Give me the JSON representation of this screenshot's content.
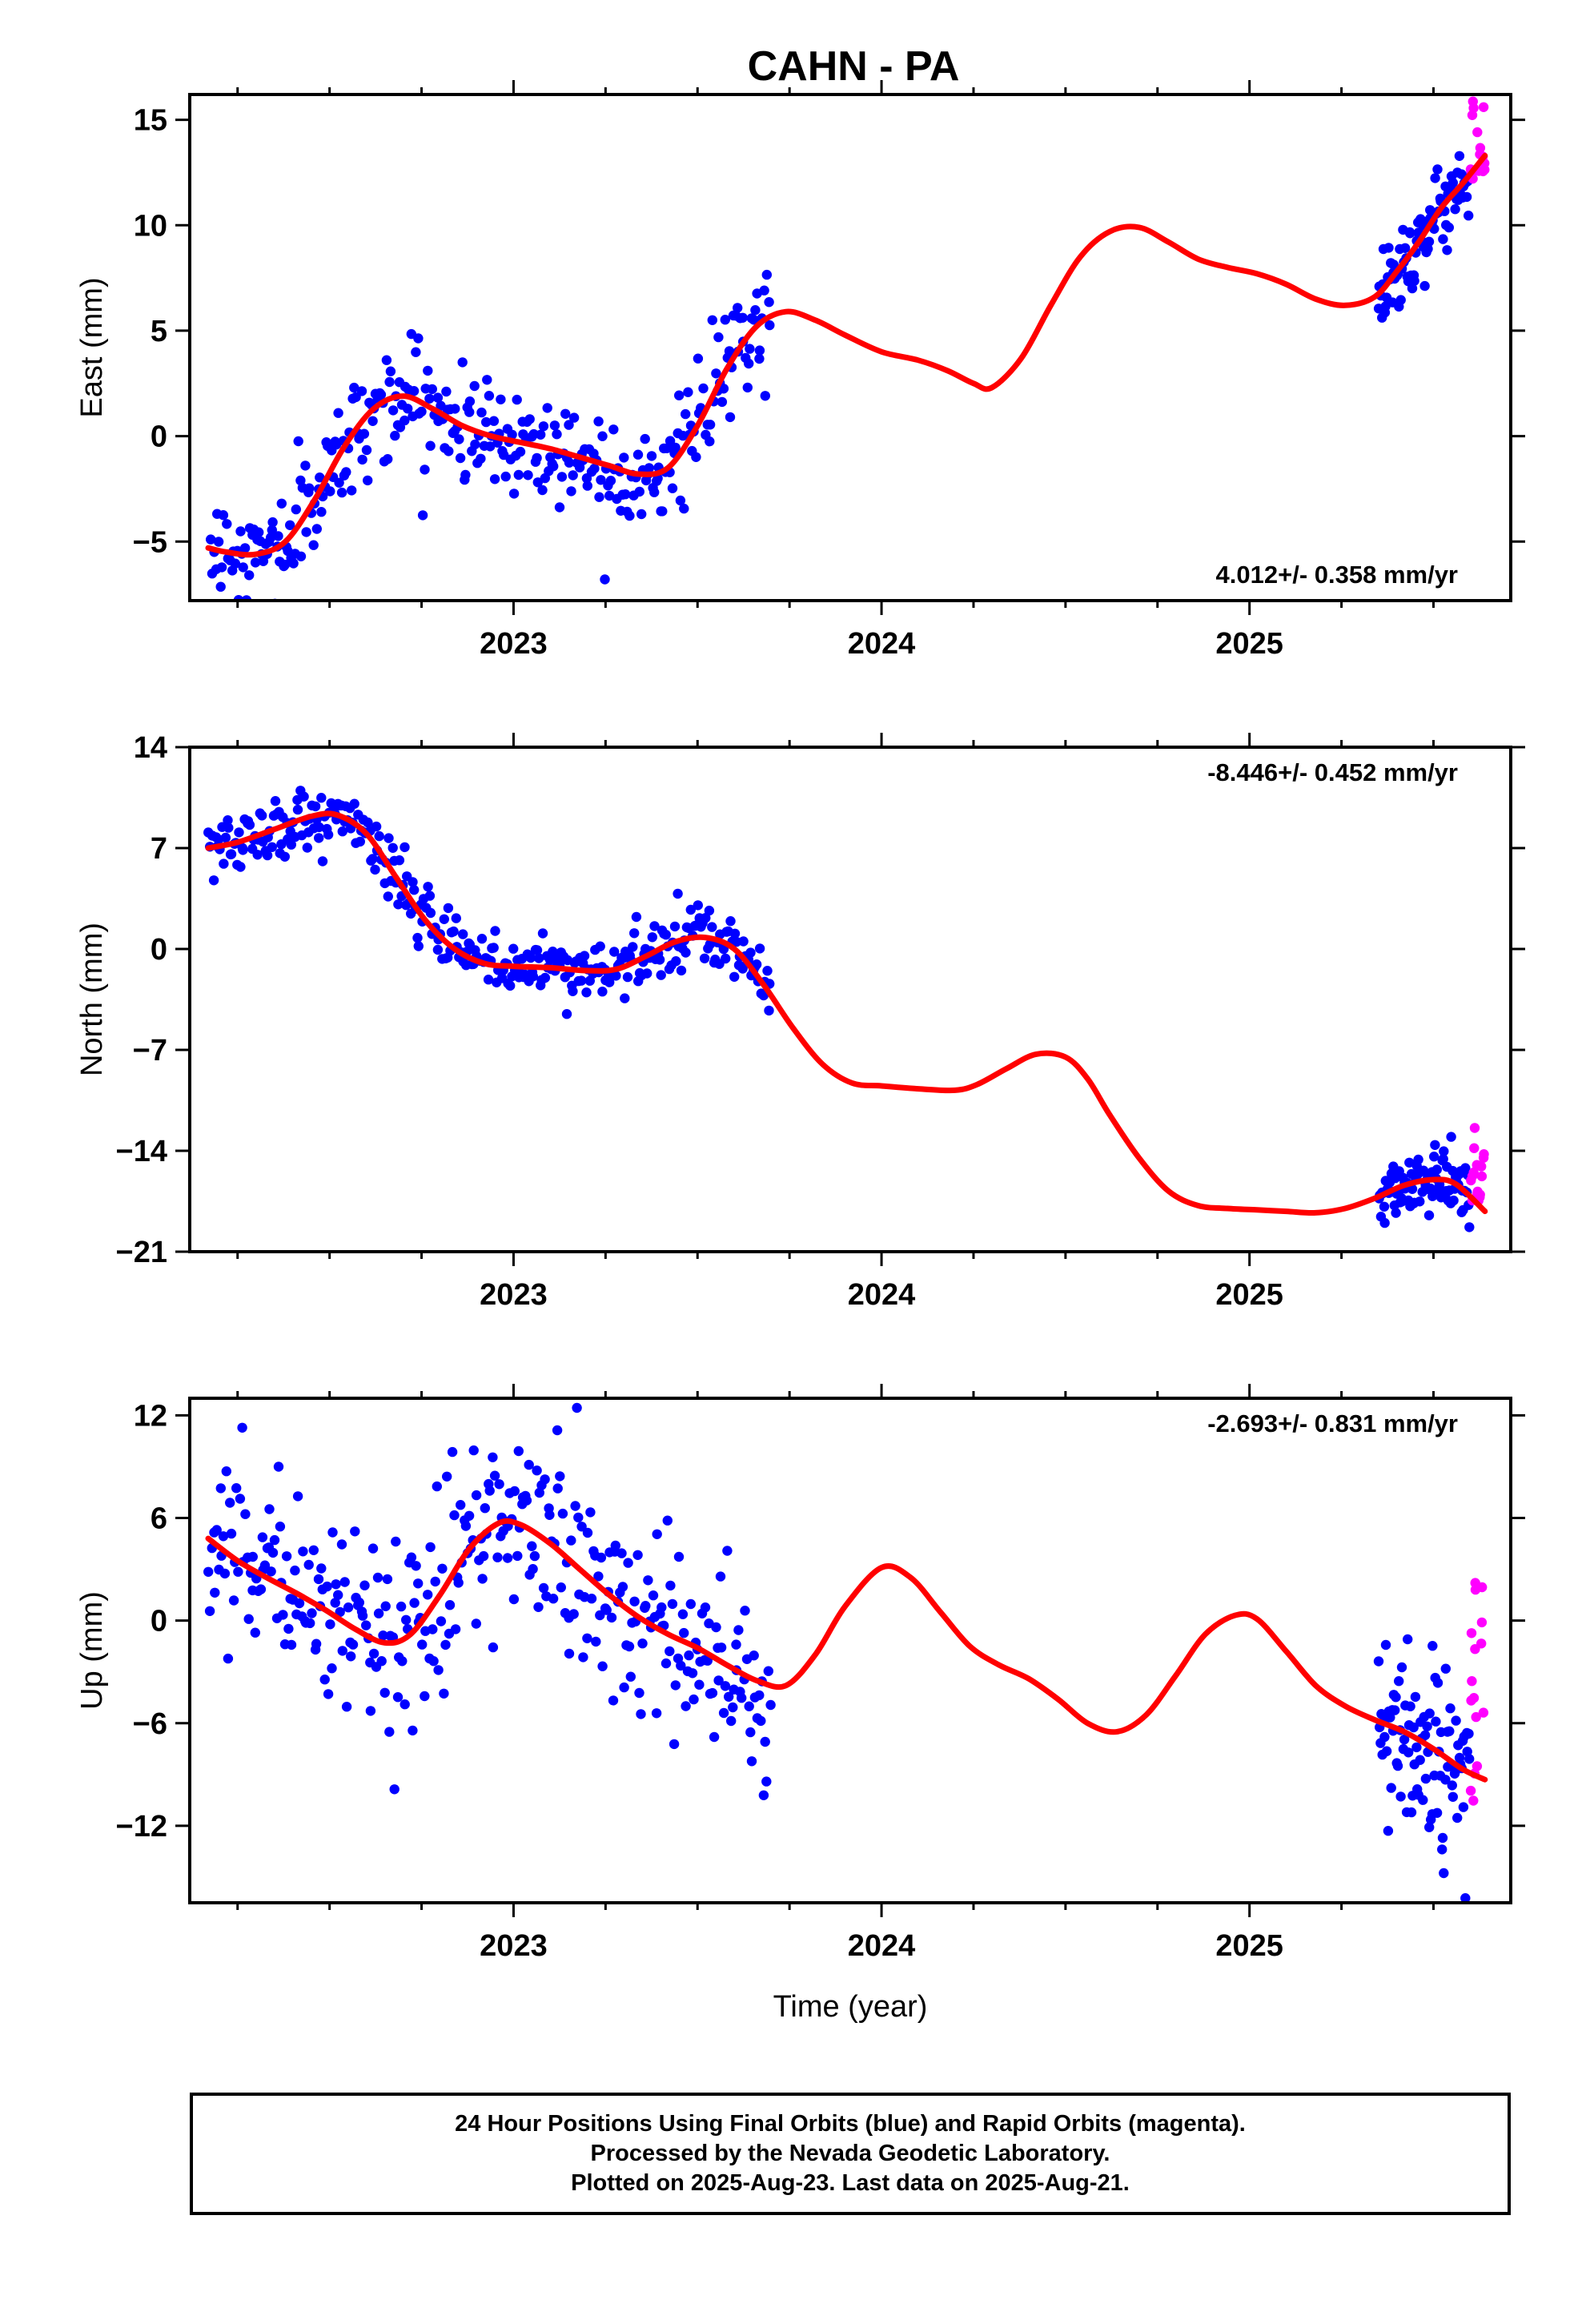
{
  "chart_data": [
    {
      "type": "scatter",
      "title": "CAHN - PA",
      "ylabel": "East (mm)",
      "xlabel": "",
      "xlim": [
        2022.12,
        2025.71
      ],
      "ylim": [
        -7.8,
        16.2
      ],
      "yticks": [
        15,
        10,
        5,
        0,
        -5
      ],
      "xticks": [
        2023,
        2024,
        2025
      ],
      "xticks_minor": [
        2022.25,
        2022.5,
        2022.75,
        2023.25,
        2023.5,
        2023.75,
        2024.25,
        2024.5,
        2024.75,
        2025.25,
        2025.5
      ],
      "rate_label": "4.012+/- 0.358 mm/yr",
      "rate_position": "bottom-right",
      "colors": {
        "final": "#0000ff",
        "rapid": "#ff00ff",
        "model": "#ff0000"
      },
      "model_curve": {
        "x": [
          2022.17,
          2022.22,
          2022.3,
          2022.38,
          2022.46,
          2022.54,
          2022.62,
          2022.7,
          2022.78,
          2022.86,
          2022.94,
          2023.02,
          2023.1,
          2023.18,
          2023.26,
          2023.34,
          2023.42,
          2023.5,
          2023.58,
          2023.66,
          2023.74,
          2023.82,
          2023.9,
          2024.0,
          2024.1,
          2024.18,
          2024.25,
          2024.3,
          2024.38,
          2024.46,
          2024.54,
          2024.62,
          2024.7,
          2024.78,
          2024.86,
          2024.94,
          2025.02,
          2025.1,
          2025.18,
          2025.26,
          2025.34,
          2025.4,
          2025.46,
          2025.52,
          2025.58,
          2025.64
        ],
        "y": [
          -5.3,
          -5.5,
          -5.6,
          -5.0,
          -3.0,
          -0.5,
          1.3,
          1.9,
          1.3,
          0.5,
          0.0,
          -0.3,
          -0.6,
          -1.0,
          -1.4,
          -1.8,
          -1.5,
          0.5,
          3.2,
          5.2,
          5.9,
          5.5,
          4.8,
          4.0,
          3.6,
          3.1,
          2.5,
          2.3,
          3.7,
          6.2,
          8.5,
          9.7,
          9.9,
          9.2,
          8.4,
          8.0,
          7.7,
          7.2,
          6.5,
          6.2,
          6.6,
          7.8,
          9.2,
          10.8,
          12.0,
          13.3
        ]
      },
      "final_segments": [
        {
          "x0": 2022.17,
          "x1": 2023.7,
          "scatter_mm": 1.3,
          "n": 340
        },
        {
          "x0": 2025.35,
          "x1": 2025.6,
          "scatter_mm": 1.0,
          "n": 90
        }
      ],
      "rapid_segments": [
        {
          "x0": 2025.6,
          "x1": 2025.64,
          "y_range": [
            11.5,
            16.0
          ],
          "n": 16
        }
      ]
    },
    {
      "type": "scatter",
      "ylabel": "North (mm)",
      "xlabel": "",
      "xlim": [
        2022.12,
        2025.71
      ],
      "ylim": [
        -21,
        14
      ],
      "yticks": [
        14,
        7,
        0,
        -7,
        -14,
        -21
      ],
      "ytick_labels": [
        "14",
        "7",
        "0",
        "−7",
        "−14",
        "−21"
      ],
      "xticks": [
        2023,
        2024,
        2025
      ],
      "xticks_minor": [
        2022.25,
        2022.5,
        2022.75,
        2023.25,
        2023.5,
        2023.75,
        2024.25,
        2024.5,
        2024.75,
        2025.25,
        2025.5
      ],
      "rate_label": "-8.446+/- 0.452 mm/yr",
      "rate_position": "top-right",
      "colors": {
        "final": "#0000ff",
        "rapid": "#ff00ff",
        "model": "#ff0000"
      },
      "model_curve": {
        "x": [
          2022.17,
          2022.25,
          2022.35,
          2022.45,
          2022.52,
          2022.6,
          2022.68,
          2022.76,
          2022.84,
          2022.92,
          2023.0,
          2023.1,
          2023.2,
          2023.28,
          2023.36,
          2023.44,
          2023.52,
          2023.6,
          2023.68,
          2023.76,
          2023.84,
          2023.92,
          2024.0,
          2024.1,
          2024.2,
          2024.26,
          2024.34,
          2024.42,
          2024.5,
          2024.56,
          2024.62,
          2024.7,
          2024.78,
          2024.86,
          2024.94,
          2025.02,
          2025.1,
          2025.18,
          2025.26,
          2025.34,
          2025.42,
          2025.5,
          2025.56,
          2025.64
        ],
        "y": [
          7.0,
          7.4,
          8.3,
          9.2,
          9.3,
          8.0,
          5.0,
          2.0,
          0.0,
          -1.0,
          -1.2,
          -1.3,
          -1.5,
          -1.4,
          -0.5,
          0.5,
          0.8,
          0.0,
          -2.5,
          -5.5,
          -8.0,
          -9.3,
          -9.5,
          -9.7,
          -9.8,
          -9.4,
          -8.3,
          -7.3,
          -7.5,
          -9.0,
          -11.5,
          -14.5,
          -16.8,
          -17.8,
          -18.0,
          -18.1,
          -18.2,
          -18.3,
          -18.0,
          -17.3,
          -16.4,
          -16.0,
          -16.3,
          -18.2
        ]
      },
      "final_segments": [
        {
          "x0": 2022.17,
          "x1": 2023.7,
          "scatter_mm": 1.1,
          "n": 340
        },
        {
          "x0": 2025.35,
          "x1": 2025.6,
          "scatter_mm": 1.1,
          "n": 90
        }
      ],
      "rapid_segments": [
        {
          "x0": 2025.6,
          "x1": 2025.64,
          "y_range": [
            -18.7,
            -12.2
          ],
          "n": 16
        }
      ]
    },
    {
      "type": "scatter",
      "ylabel": "Up (mm)",
      "xlabel": "Time (year)",
      "xlim": [
        2022.12,
        2025.71
      ],
      "ylim": [
        -16.5,
        13
      ],
      "yticks": [
        12,
        6,
        0,
        -6,
        -12
      ],
      "ytick_labels": [
        "12",
        "6",
        "0",
        "−6",
        "−12"
      ],
      "xticks": [
        2023,
        2024,
        2025
      ],
      "xticks_minor": [
        2022.25,
        2022.5,
        2022.75,
        2023.25,
        2023.5,
        2023.75,
        2024.25,
        2024.5,
        2024.75,
        2025.25,
        2025.5
      ],
      "rate_label": "-2.693+/- 0.831 mm/yr",
      "rate_position": "top-right",
      "colors": {
        "final": "#0000ff",
        "rapid": "#ff00ff",
        "model": "#ff0000"
      },
      "model_curve": {
        "x": [
          2022.17,
          2022.25,
          2022.33,
          2022.41,
          2022.49,
          2022.57,
          2022.65,
          2022.72,
          2022.8,
          2022.88,
          2022.96,
          2023.02,
          2023.1,
          2023.18,
          2023.26,
          2023.34,
          2023.42,
          2023.5,
          2023.58,
          2023.66,
          2023.74,
          2023.82,
          2023.9,
          2024.0,
          2024.08,
          2024.16,
          2024.24,
          2024.32,
          2024.4,
          2024.48,
          2024.56,
          2024.64,
          2024.72,
          2024.8,
          2024.88,
          2024.96,
          2025.02,
          2025.1,
          2025.18,
          2025.26,
          2025.34,
          2025.42,
          2025.5,
          2025.58,
          2025.64
        ],
        "y": [
          4.8,
          3.5,
          2.5,
          1.6,
          0.6,
          -0.5,
          -1.3,
          -0.8,
          1.5,
          4.2,
          5.7,
          5.6,
          4.5,
          3.0,
          1.5,
          0.2,
          -0.8,
          -1.6,
          -2.6,
          -3.5,
          -3.8,
          -2.0,
          0.8,
          3.1,
          2.5,
          0.5,
          -1.5,
          -2.6,
          -3.4,
          -4.6,
          -6.0,
          -6.5,
          -5.5,
          -3.2,
          -0.8,
          0.3,
          0.1,
          -1.8,
          -3.8,
          -5.0,
          -5.8,
          -6.5,
          -7.5,
          -8.7,
          -9.3
        ]
      },
      "final_segments": [
        {
          "x0": 2022.17,
          "x1": 2023.7,
          "scatter_mm": 3.0,
          "n": 340
        },
        {
          "x0": 2025.35,
          "x1": 2025.6,
          "scatter_mm": 2.7,
          "n": 90
        }
      ],
      "rapid_segments": [
        {
          "x0": 2025.6,
          "x1": 2025.64,
          "y_range": [
            -12.0,
            2.7
          ],
          "n": 16
        }
      ]
    }
  ],
  "footer": {
    "line1": "24 Hour Positions Using Final Orbits (blue) and Rapid Orbits (magenta).",
    "line2": "Processed by the Nevada Geodetic Laboratory.",
    "line3": "Plotted on 2025-Aug-23. Last data on 2025-Aug-21."
  }
}
